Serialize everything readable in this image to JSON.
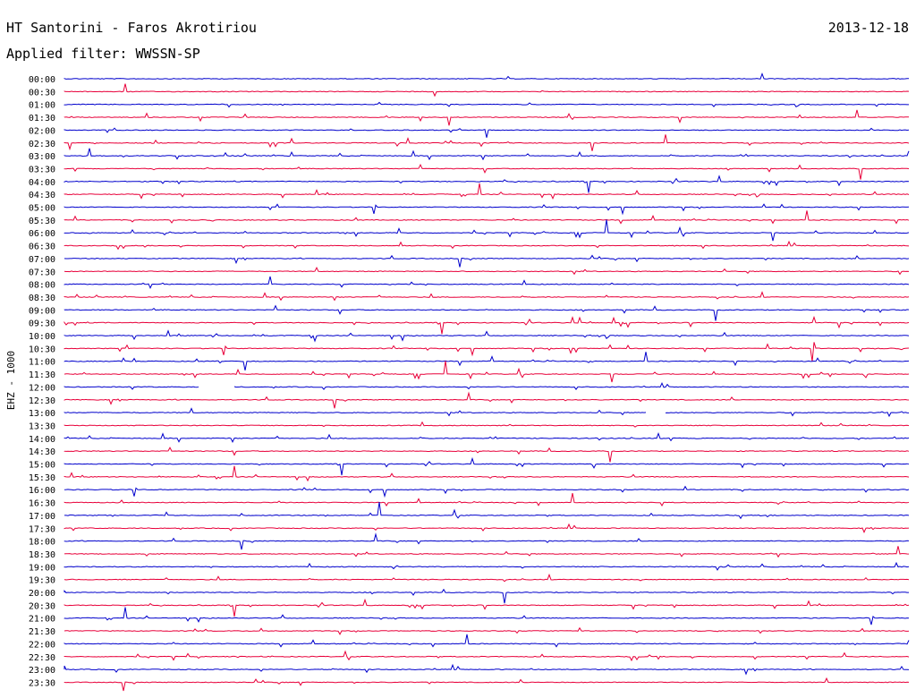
{
  "header": {
    "station": "HT Santorini - Faros Akrotiriou",
    "date": "2013-12-18",
    "filter": "Applied filter: WWSSN-SP"
  },
  "channel_label": "EHZ - 1000",
  "colors": {
    "blue": "#0000cc",
    "red": "#e8003a",
    "text": "#000000"
  },
  "chart_data": {
    "type": "line",
    "title": "HT Santorini - Faros Akrotiriou",
    "ylabel": "EHZ - 1000",
    "rows": [
      "00:00",
      "00:30",
      "01:00",
      "01:30",
      "02:00",
      "02:30",
      "03:00",
      "03:30",
      "04:00",
      "04:30",
      "05:00",
      "05:30",
      "06:00",
      "06:30",
      "07:00",
      "07:30",
      "08:00",
      "08:30",
      "09:00",
      "09:30",
      "10:00",
      "10:30",
      "11:00",
      "11:30",
      "12:00",
      "12:30",
      "13:00",
      "13:30",
      "14:00",
      "14:30",
      "15:00",
      "15:30",
      "16:00",
      "16:30",
      "17:00",
      "17:30",
      "18:00",
      "18:30",
      "19:00",
      "19:30",
      "20:00",
      "20:30",
      "21:00",
      "21:30",
      "22:00",
      "22:30",
      "23:00",
      "23:30"
    ],
    "series_colors": [
      "blue",
      "red"
    ],
    "activity": [
      0.15,
      0.3,
      0.35,
      0.8,
      0.4,
      0.85,
      0.75,
      0.75,
      0.75,
      0.7,
      0.8,
      0.75,
      0.85,
      0.6,
      0.65,
      0.6,
      0.8,
      0.6,
      0.8,
      0.95,
      0.85,
      0.95,
      0.95,
      0.85,
      0.55,
      0.6,
      0.7,
      0.65,
      0.75,
      0.6,
      0.55,
      0.6,
      0.55,
      0.65,
      0.5,
      0.55,
      0.55,
      0.5,
      0.55,
      0.55,
      0.6,
      0.65,
      0.55,
      0.5,
      0.6,
      0.75,
      0.7,
      0.65
    ],
    "gaps": [
      {
        "row": "12:00",
        "start": 0.16,
        "end": 0.2
      },
      {
        "row": "13:00",
        "start": 0.69,
        "end": 0.71
      }
    ],
    "grid": false
  }
}
